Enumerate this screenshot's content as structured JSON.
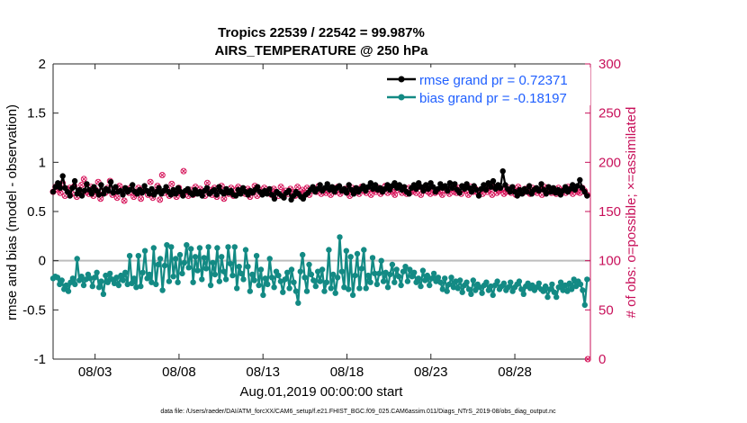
{
  "chart_data": {
    "type": "line",
    "title_line1": "Tropics 22539 / 22542 = 99.987%",
    "title_line2": "AIRS_TEMPERATURE @ 250 hPa",
    "ylabel_left": "rmse and bias (model - observation)",
    "ylabel_right": "# of obs: o=possible; ×=assimilated",
    "xlabel": "Aug.01,2019 00:00:00 start",
    "footnote": "data file: /Users/raeder/DAI/ATM_forcXX/CAM6_setup/f.e21.FHIST_BGC.f09_025.CAM6assim.011/Diags_NTrS_2019-08/obs_diag_output.nc",
    "x_ticks": [
      {
        "day": 3,
        "label": "08/03"
      },
      {
        "day": 8,
        "label": "08/08"
      },
      {
        "day": 13,
        "label": "08/13"
      },
      {
        "day": 18,
        "label": "08/18"
      },
      {
        "day": 23,
        "label": "08/23"
      },
      {
        "day": 28,
        "label": "08/28"
      }
    ],
    "y_left_ticks": [
      "-1",
      "-0.5",
      "0",
      "0.5",
      "1",
      "1.5",
      "2"
    ],
    "y_left_values": [
      -1,
      -0.5,
      0,
      0.5,
      1,
      1.5,
      2
    ],
    "y_right_ticks": [
      "0",
      "50",
      "100",
      "150",
      "200",
      "250",
      "300"
    ],
    "y_right_values": [
      0,
      50,
      100,
      150,
      200,
      250,
      300
    ],
    "xlim": [
      0.5,
      32.5
    ],
    "ylim_left": [
      -1,
      2
    ],
    "ylim_right": [
      0,
      300
    ],
    "colors": {
      "rmse": "#000000",
      "bias": "#138a84",
      "obs": "#d6145a",
      "legend_text": "#1f5fff",
      "zero_line": "#bdbdbd",
      "right_axis": "#c8105a"
    },
    "series": [
      {
        "name": "rmse grand pr = 0.72371",
        "key": "rmse",
        "values": [
          0.7,
          0.75,
          0.79,
          0.74,
          0.86,
          0.74,
          0.7,
          0.66,
          0.74,
          0.81,
          0.68,
          0.72,
          0.66,
          0.71,
          0.78,
          0.72,
          0.68,
          0.75,
          0.71,
          0.67,
          0.77,
          0.68,
          0.73,
          0.71,
          0.8,
          0.69,
          0.75,
          0.7,
          0.71,
          0.67,
          0.74,
          0.7,
          0.72,
          0.77,
          0.7,
          0.68,
          0.72,
          0.69,
          0.76,
          0.71,
          0.68,
          0.73,
          0.67,
          0.7,
          0.74,
          0.68,
          0.71,
          0.75,
          0.7,
          0.67,
          0.72,
          0.68,
          0.74,
          0.7,
          0.66,
          0.71,
          0.73,
          0.69,
          0.67,
          0.72,
          0.68,
          0.7,
          0.66,
          0.71,
          0.74,
          0.68,
          0.7,
          0.72,
          0.67,
          0.75,
          0.7,
          0.68,
          0.73,
          0.69,
          0.71,
          0.67,
          0.66,
          0.72,
          0.68,
          0.74,
          0.7,
          0.67,
          0.71,
          0.69,
          0.72,
          0.75,
          0.7,
          0.67,
          0.71,
          0.68,
          0.73,
          0.67,
          0.63,
          0.7,
          0.68,
          0.66,
          0.64,
          0.69,
          0.71,
          0.62,
          0.66,
          0.7,
          0.68,
          0.65,
          0.63,
          0.67,
          0.69,
          0.72,
          0.75,
          0.7,
          0.73,
          0.77,
          0.71,
          0.74,
          0.78,
          0.72,
          0.75,
          0.7,
          0.74,
          0.76,
          0.71,
          0.73,
          0.69,
          0.77,
          0.72,
          0.68,
          0.74,
          0.7,
          0.73,
          0.76,
          0.71,
          0.75,
          0.79,
          0.73,
          0.77,
          0.72,
          0.74,
          0.7,
          0.73,
          0.77,
          0.72,
          0.76,
          0.79,
          0.74,
          0.77,
          0.72,
          0.75,
          0.7,
          0.68,
          0.74,
          0.77,
          0.73,
          0.79,
          0.75,
          0.71,
          0.77,
          0.73,
          0.79,
          0.75,
          0.7,
          0.73,
          0.78,
          0.74,
          0.76,
          0.71,
          0.79,
          0.74,
          0.78,
          0.72,
          0.69,
          0.76,
          0.73,
          0.78,
          0.74,
          0.7,
          0.76,
          0.72,
          0.66,
          0.73,
          0.77,
          0.72,
          0.79,
          0.75,
          0.81,
          0.73,
          0.77,
          0.74,
          0.91,
          0.77,
          0.73,
          0.7,
          0.75,
          0.7,
          0.66,
          0.72,
          0.68,
          0.73,
          0.7,
          0.76,
          0.68,
          0.72,
          0.74,
          0.71,
          0.78,
          0.72,
          0.68,
          0.75,
          0.7,
          0.74,
          0.69,
          0.72,
          0.67,
          0.71,
          0.75,
          0.7,
          0.73,
          0.77,
          0.72,
          0.76,
          0.82,
          0.74,
          0.7,
          0.66
        ]
      },
      {
        "name": "bias grand pr = -0.18197",
        "key": "bias",
        "values": [
          -0.18,
          -0.16,
          -0.17,
          -0.24,
          -0.2,
          -0.29,
          -0.25,
          -0.31,
          -0.22,
          -0.18,
          -0.24,
          0.02,
          -0.2,
          -0.16,
          -0.25,
          -0.19,
          -0.14,
          -0.18,
          -0.26,
          -0.17,
          -0.12,
          -0.27,
          -0.21,
          -0.34,
          -0.15,
          -0.22,
          -0.13,
          -0.19,
          -0.23,
          -0.17,
          -0.25,
          -0.15,
          -0.2,
          -0.12,
          -0.24,
          0.05,
          -0.23,
          -0.18,
          -0.27,
          0.05,
          -0.26,
          -0.12,
          0.1,
          -0.18,
          -0.14,
          -0.22,
          0.13,
          -0.24,
          -0.04,
          0.02,
          -0.3,
          -0.05,
          0.16,
          -0.21,
          0.14,
          -0.16,
          0.02,
          -0.22,
          0.06,
          -0.13,
          -0.02,
          0.16,
          -0.07,
          0.12,
          -0.22,
          0.04,
          -0.1,
          0.13,
          -0.19,
          0.03,
          -0.08,
          0.14,
          -0.25,
          -0.02,
          -0.14,
          0.13,
          -0.21,
          0.04,
          -0.11,
          -0.19,
          0.14,
          -0.03,
          -0.15,
          0.14,
          -0.28,
          -0.06,
          -0.13,
          -0.19,
          0.11,
          -0.06,
          -0.31,
          -0.14,
          -0.2,
          0.05,
          -0.25,
          -0.09,
          -0.35,
          -0.18,
          -0.24,
          0.02,
          -0.17,
          -0.27,
          -0.11,
          -0.15,
          -0.21,
          -0.32,
          -0.19,
          -0.12,
          -0.28,
          -0.09,
          -0.22,
          -0.31,
          -0.43,
          -0.11,
          0.06,
          -0.17,
          -0.31,
          -0.04,
          -0.14,
          -0.2,
          -0.26,
          -0.11,
          -0.21,
          -0.09,
          -0.31,
          -0.22,
          0.11,
          -0.28,
          -0.14,
          -0.33,
          -0.17,
          0.24,
          -0.11,
          -0.27,
          0.1,
          -0.29,
          0.04,
          -0.35,
          -0.15,
          0.07,
          -0.28,
          -0.08,
          0.11,
          -0.28,
          -0.15,
          -0.22,
          0.03,
          -0.13,
          -0.24,
          -0.13,
          0.0,
          -0.21,
          -0.12,
          -0.27,
          -0.14,
          -0.04,
          -0.22,
          -0.09,
          -0.16,
          -0.25,
          -0.11,
          -0.06,
          -0.21,
          -0.09,
          -0.16,
          -0.12,
          -0.22,
          -0.18,
          -0.26,
          -0.1,
          -0.2,
          -0.15,
          -0.25,
          -0.18,
          -0.13,
          -0.21,
          -0.17,
          -0.22,
          -0.29,
          -0.18,
          -0.31,
          -0.24,
          -0.17,
          -0.27,
          -0.21,
          -0.28,
          -0.2,
          -0.32,
          -0.25,
          -0.22,
          -0.29,
          -0.34,
          -0.2,
          -0.3,
          -0.24,
          -0.27,
          -0.33,
          -0.25,
          -0.22,
          -0.3,
          -0.26,
          -0.35,
          -0.25,
          -0.21,
          -0.29,
          -0.26,
          -0.23,
          -0.3,
          -0.27,
          -0.22,
          -0.31,
          -0.27,
          -0.24,
          -0.21,
          -0.29,
          -0.34,
          -0.26,
          -0.23,
          -0.28,
          -0.25,
          -0.3,
          -0.27,
          -0.23,
          -0.29,
          -0.31,
          -0.26,
          -0.37,
          -0.29,
          -0.24,
          -0.32,
          -0.37,
          -0.27,
          -0.22,
          -0.3,
          -0.25,
          -0.31,
          -0.23,
          -0.29,
          -0.19,
          -0.26,
          -0.21,
          -0.24,
          -0.3,
          -0.45,
          -0.19
        ]
      },
      {
        "name": "# of obs",
        "key": "obs",
        "values": [
          170,
          175,
          172,
          169,
          179,
          166,
          172,
          174,
          168,
          176,
          165,
          171,
          177,
          183,
          170,
          168,
          175,
          166,
          172,
          180,
          163,
          171,
          169,
          174,
          181,
          167,
          170,
          164,
          176,
          172,
          161,
          173,
          169,
          175,
          165,
          168,
          174,
          163,
          172,
          171,
          167,
          180,
          164,
          170,
          176,
          162,
          187,
          169,
          173,
          166,
          178,
          171,
          165,
          174,
          168,
          191,
          170,
          166,
          172,
          167,
          175,
          169,
          173,
          170,
          166,
          179,
          172,
          167,
          174,
          165,
          171,
          176,
          163,
          170,
          168,
          174,
          166,
          172,
          175,
          169,
          171,
          168,
          173,
          165,
          170,
          176,
          166,
          172,
          168,
          174,
          169,
          171,
          167,
          173,
          170,
          166,
          175,
          169,
          171,
          168,
          173,
          170,
          166,
          175,
          168,
          172,
          169,
          174,
          167,
          171,
          173,
          170,
          176,
          168,
          172,
          169,
          171,
          167,
          174,
          170,
          175,
          168,
          171,
          173,
          169,
          166,
          174,
          170,
          172,
          168,
          175,
          171,
          169,
          173,
          167,
          172,
          170,
          174,
          168,
          171,
          176,
          169,
          173,
          170,
          167,
          172,
          175,
          169,
          171,
          168,
          174,
          170,
          172,
          169,
          175,
          167,
          171,
          173,
          170,
          168,
          174,
          169,
          172,
          170,
          167,
          175,
          171,
          168,
          173,
          170,
          169,
          174,
          168,
          172,
          171,
          167,
          175,
          170,
          173,
          169,
          171,
          168,
          174,
          170,
          172,
          167,
          175,
          169,
          171,
          173,
          168,
          170,
          174,
          169,
          172,
          167,
          175,
          171,
          169,
          173,
          170,
          168,
          174,
          171,
          169,
          172,
          167,
          175,
          170,
          173,
          169,
          171,
          168,
          174,
          170,
          172,
          169,
          175,
          171,
          168,
          173,
          170,
          169,
          174,
          171,
          167
        ]
      }
    ],
    "obs_last_value": 0
  }
}
